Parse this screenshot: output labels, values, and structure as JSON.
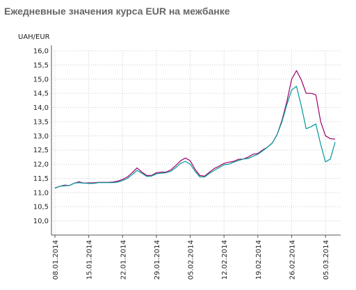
{
  "chart_data": {
    "type": "line",
    "title": "Ежедневные значения курса EUR на межбанке",
    "ylabel": "UAH/EUR",
    "xlabel": "",
    "ylim": [
      9.5,
      16.0
    ],
    "y_ticks": [
      {
        "value": 16.0,
        "label": "16,0"
      },
      {
        "value": 15.5,
        "label": "15,5"
      },
      {
        "value": 15.0,
        "label": "15,0"
      },
      {
        "value": 14.5,
        "label": "14,5"
      },
      {
        "value": 14.0,
        "label": "14,0"
      },
      {
        "value": 13.5,
        "label": "13,5"
      },
      {
        "value": 13.0,
        "label": "13,0"
      },
      {
        "value": 12.5,
        "label": "12,5"
      },
      {
        "value": 12.0,
        "label": "12,0"
      },
      {
        "value": 11.5,
        "label": "11,5"
      },
      {
        "value": 11.0,
        "label": "11,0"
      },
      {
        "value": 10.5,
        "label": "10,5"
      },
      {
        "value": 10.0,
        "label": "10,0"
      }
    ],
    "x_ticks": [
      {
        "index": 0,
        "label": "08.01.2014"
      },
      {
        "index": 7,
        "label": "15.01.2014"
      },
      {
        "index": 14,
        "label": "22.01.2014"
      },
      {
        "index": 21,
        "label": "29.01.2014"
      },
      {
        "index": 28,
        "label": "05.02.2014"
      },
      {
        "index": 35,
        "label": "12.02.2014"
      },
      {
        "index": 42,
        "label": "19.02.2014"
      },
      {
        "index": 49,
        "label": "26.02.2014"
      },
      {
        "index": 56,
        "label": "05.03.2014"
      }
    ],
    "grid": true,
    "series": [
      {
        "color": "#990066",
        "values": [
          11.16,
          11.22,
          11.26,
          11.25,
          11.33,
          11.38,
          11.33,
          11.34,
          11.34,
          11.36,
          11.36,
          11.36,
          11.37,
          11.4,
          11.46,
          11.55,
          11.7,
          11.87,
          11.72,
          11.6,
          11.6,
          11.7,
          11.72,
          11.72,
          11.8,
          11.95,
          12.12,
          12.22,
          12.12,
          11.82,
          11.6,
          11.58,
          11.72,
          11.85,
          11.93,
          12.03,
          12.07,
          12.1,
          12.17,
          12.18,
          12.25,
          12.35,
          12.38,
          12.5,
          12.6,
          12.75,
          13.05,
          13.55,
          14.2,
          15.0,
          15.3,
          14.97,
          14.5,
          14.5,
          14.45,
          13.5,
          13.0,
          12.9,
          12.88
        ]
      },
      {
        "color": "#009999",
        "values": [
          11.15,
          11.22,
          11.24,
          11.25,
          11.33,
          11.35,
          11.33,
          11.32,
          11.32,
          11.35,
          11.35,
          11.35,
          11.35,
          11.37,
          11.42,
          11.5,
          11.63,
          11.78,
          11.68,
          11.57,
          11.58,
          11.66,
          11.68,
          11.7,
          11.75,
          11.88,
          12.03,
          12.1,
          12.0,
          11.75,
          11.55,
          11.55,
          11.68,
          11.78,
          11.88,
          11.98,
          12.0,
          12.07,
          12.13,
          12.18,
          12.2,
          12.28,
          12.35,
          12.47,
          12.6,
          12.75,
          13.05,
          13.5,
          14.1,
          14.62,
          14.75,
          14.05,
          13.25,
          13.32,
          13.42,
          12.7,
          12.08,
          12.18,
          12.78
        ]
      }
    ]
  }
}
